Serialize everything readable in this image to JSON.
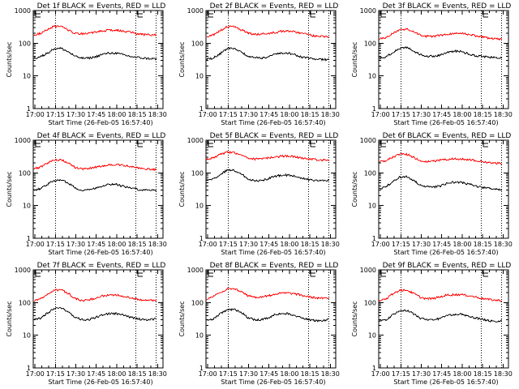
{
  "figure": {
    "ylabel": "Counts/sec",
    "xlabel": "Start Time (26-Feb-05 16:57:40)",
    "colors": {
      "events": "#000000",
      "lld": "#ff0000",
      "axes": "#000000"
    },
    "marker_label": "E"
  },
  "chart_data": [
    {
      "type": "line",
      "title": "Det 1f BLACK = Events, RED = LLD",
      "xlabel": "Start Time (26-Feb-05 16:57:40)",
      "ylabel": "Counts/sec",
      "yscale": "log",
      "ylim": [
        1,
        1000
      ],
      "y_ticks": [
        "1",
        "10",
        "100",
        "1000"
      ],
      "x_ticks": [
        "17:00",
        "17:15",
        "17:30",
        "17:45",
        "18:00",
        "18:15",
        "18:30"
      ],
      "xlim_minutes_after_1700": [
        -1.3,
        94
      ],
      "dotted_lines_minutes_after_1700": [
        15,
        74,
        89
      ],
      "markers": [
        {
          "label": "E",
          "minute": 0
        },
        {
          "label": "E",
          "minute": 75
        }
      ],
      "x": [
        0,
        5,
        10,
        15,
        20,
        25,
        30,
        35,
        40,
        45,
        50,
        55,
        60,
        65,
        70,
        75,
        80,
        85,
        90
      ],
      "series": [
        {
          "name": "LLD",
          "color": "#ff0000",
          "values": [
            180,
            200,
            260,
            330,
            320,
            260,
            200,
            195,
            200,
            215,
            240,
            250,
            250,
            240,
            220,
            200,
            185,
            180,
            180
          ]
        },
        {
          "name": "Events",
          "color": "#000000",
          "values": [
            35,
            38,
            50,
            68,
            70,
            55,
            40,
            35,
            35,
            38,
            45,
            50,
            50,
            45,
            40,
            37,
            35,
            34,
            33
          ]
        }
      ]
    },
    {
      "type": "line",
      "title": "Det 2f BLACK = Events, RED = LLD",
      "xlabel": "Start Time (26-Feb-05 16:57:40)",
      "ylabel": "Counts/sec",
      "yscale": "log",
      "ylim": [
        1,
        1000
      ],
      "y_ticks": [
        "1",
        "10",
        "100",
        "1000"
      ],
      "x_ticks": [
        "17:00",
        "17:15",
        "17:30",
        "17:45",
        "18:00",
        "18:15",
        "18:30"
      ],
      "xlim_minutes_after_1700": [
        -1.3,
        94
      ],
      "dotted_lines_minutes_after_1700": [
        15,
        74,
        89
      ],
      "markers": [
        {
          "label": "E",
          "minute": 0
        },
        {
          "label": "E",
          "minute": 75
        }
      ],
      "x": [
        0,
        5,
        10,
        15,
        20,
        25,
        30,
        35,
        40,
        45,
        50,
        55,
        60,
        65,
        70,
        75,
        80,
        85,
        90
      ],
      "series": [
        {
          "name": "LLD",
          "color": "#ff0000",
          "values": [
            160,
            180,
            240,
            320,
            320,
            260,
            210,
            185,
            190,
            200,
            215,
            230,
            235,
            225,
            200,
            180,
            165,
            160,
            155
          ]
        },
        {
          "name": "Events",
          "color": "#000000",
          "values": [
            32,
            35,
            48,
            68,
            70,
            55,
            40,
            36,
            35,
            38,
            45,
            50,
            50,
            44,
            38,
            35,
            33,
            32,
            31
          ]
        }
      ]
    },
    {
      "type": "line",
      "title": "Det 3f BLACK = Events, RED = LLD",
      "xlabel": "Start Time (26-Feb-05 16:57:40)",
      "ylabel": "Counts/sec",
      "yscale": "log",
      "ylim": [
        1,
        1000
      ],
      "y_ticks": [
        "1",
        "10",
        "100",
        "1000"
      ],
      "x_ticks": [
        "17:00",
        "17:15",
        "17:30",
        "17:45",
        "18:00",
        "18:15",
        "18:30"
      ],
      "xlim_minutes_after_1700": [
        -1.3,
        94
      ],
      "dotted_lines_minutes_after_1700": [
        15,
        74,
        89
      ],
      "markers": [
        {
          "label": "E",
          "minute": 0
        },
        {
          "label": "E",
          "minute": 75
        }
      ],
      "x": [
        0,
        5,
        10,
        15,
        20,
        25,
        30,
        35,
        40,
        45,
        50,
        55,
        60,
        65,
        70,
        75,
        80,
        85,
        90
      ],
      "series": [
        {
          "name": "LLD",
          "color": "#ff0000",
          "values": [
            135,
            150,
            200,
            260,
            270,
            220,
            180,
            160,
            165,
            175,
            190,
            200,
            200,
            190,
            170,
            160,
            145,
            135,
            130
          ]
        },
        {
          "name": "Events",
          "color": "#000000",
          "values": [
            35,
            38,
            52,
            70,
            75,
            58,
            45,
            40,
            40,
            44,
            52,
            58,
            55,
            48,
            42,
            40,
            38,
            36,
            35
          ]
        }
      ]
    },
    {
      "type": "line",
      "title": "Det 4f BLACK = Events, RED = LLD",
      "xlabel": "Start Time (26-Feb-05 16:57:40)",
      "ylabel": "Counts/sec",
      "yscale": "log",
      "ylim": [
        1,
        1000
      ],
      "y_ticks": [
        "1",
        "10",
        "100",
        "1000"
      ],
      "x_ticks": [
        "17:00",
        "17:15",
        "17:30",
        "17:45",
        "18:00",
        "18:15",
        "18:30"
      ],
      "xlim_minutes_after_1700": [
        -1.3,
        94
      ],
      "dotted_lines_minutes_after_1700": [
        15,
        74,
        89
      ],
      "markers": [
        {
          "label": "E",
          "minute": 0
        },
        {
          "label": "E",
          "minute": 75
        }
      ],
      "x": [
        0,
        5,
        10,
        15,
        20,
        25,
        30,
        35,
        40,
        45,
        50,
        55,
        60,
        65,
        70,
        75,
        80,
        85,
        90
      ],
      "series": [
        {
          "name": "LLD",
          "color": "#ff0000",
          "values": [
            135,
            150,
            200,
            250,
            250,
            200,
            150,
            130,
            135,
            150,
            165,
            175,
            180,
            170,
            160,
            145,
            135,
            130,
            125
          ]
        },
        {
          "name": "Events",
          "color": "#000000",
          "values": [
            30,
            33,
            45,
            58,
            60,
            50,
            35,
            30,
            30,
            34,
            40,
            45,
            45,
            40,
            35,
            32,
            30,
            30,
            30
          ]
        }
      ]
    },
    {
      "type": "line",
      "title": "Det 5f BLACK = Events, RED = LLD",
      "xlabel": "Start Time (26-Feb-05 16:57:40)",
      "ylabel": "Counts/sec",
      "yscale": "log",
      "ylim": [
        1,
        1000
      ],
      "y_ticks": [
        "1",
        "10",
        "100",
        "1000"
      ],
      "x_ticks": [
        "17:00",
        "17:15",
        "17:30",
        "17:45",
        "18:00",
        "18:15",
        "18:30"
      ],
      "xlim_minutes_after_1700": [
        -1.3,
        94
      ],
      "dotted_lines_minutes_after_1700": [
        15,
        74,
        89
      ],
      "markers": [
        {
          "label": "E",
          "minute": 0
        },
        {
          "label": "E",
          "minute": 75
        }
      ],
      "x": [
        0,
        5,
        10,
        15,
        20,
        25,
        30,
        35,
        40,
        45,
        50,
        55,
        60,
        65,
        70,
        75,
        80,
        85,
        90
      ],
      "series": [
        {
          "name": "LLD",
          "color": "#ff0000",
          "values": [
            260,
            290,
            360,
            430,
            420,
            350,
            280,
            265,
            270,
            285,
            310,
            325,
            325,
            310,
            285,
            265,
            255,
            250,
            250
          ]
        },
        {
          "name": "Events",
          "color": "#000000",
          "values": [
            60,
            65,
            90,
            120,
            120,
            95,
            65,
            58,
            58,
            65,
            80,
            85,
            85,
            78,
            70,
            62,
            58,
            58,
            60
          ]
        }
      ]
    },
    {
      "type": "line",
      "title": "Det 6f BLACK = Events, RED = LLD",
      "xlabel": "Start Time (26-Feb-05 16:57:40)",
      "ylabel": "Counts/sec",
      "yscale": "log",
      "ylim": [
        1,
        1000
      ],
      "y_ticks": [
        "1",
        "10",
        "100",
        "1000"
      ],
      "x_ticks": [
        "17:00",
        "17:15",
        "17:30",
        "17:45",
        "18:00",
        "18:15",
        "18:30"
      ],
      "xlim_minutes_after_1700": [
        -1.3,
        94
      ],
      "dotted_lines_minutes_after_1700": [
        15,
        74,
        89
      ],
      "markers": [
        {
          "label": "E",
          "minute": 0
        },
        {
          "label": "E",
          "minute": 75
        }
      ],
      "x": [
        0,
        5,
        10,
        15,
        20,
        25,
        30,
        35,
        40,
        45,
        50,
        55,
        60,
        65,
        70,
        75,
        80,
        85,
        90
      ],
      "series": [
        {
          "name": "LLD",
          "color": "#ff0000",
          "values": [
            215,
            240,
            310,
            370,
            370,
            300,
            240,
            225,
            230,
            245,
            260,
            270,
            265,
            255,
            240,
            220,
            205,
            200,
            195
          ]
        },
        {
          "name": "Events",
          "color": "#000000",
          "values": [
            33,
            37,
            55,
            75,
            78,
            58,
            42,
            37,
            37,
            40,
            48,
            52,
            52,
            46,
            40,
            36,
            34,
            32,
            31
          ]
        }
      ]
    },
    {
      "type": "line",
      "title": "Det 7f BLACK = Events, RED = LLD",
      "xlabel": "Start Time (26-Feb-05 16:57:40)",
      "ylabel": "Counts/sec",
      "yscale": "log",
      "ylim": [
        1,
        1000
      ],
      "y_ticks": [
        "1",
        "10",
        "100",
        "1000"
      ],
      "x_ticks": [
        "17:00",
        "17:15",
        "17:30",
        "17:45",
        "18:00",
        "18:15",
        "18:30"
      ],
      "xlim_minutes_after_1700": [
        -1.3,
        94
      ],
      "dotted_lines_minutes_after_1700": [
        15,
        74,
        89
      ],
      "markers": [
        {
          "label": "E",
          "minute": 0
        },
        {
          "label": "E",
          "minute": 75
        }
      ],
      "x": [
        0,
        5,
        10,
        15,
        20,
        25,
        30,
        35,
        40,
        45,
        50,
        55,
        60,
        65,
        70,
        75,
        80,
        85,
        90
      ],
      "series": [
        {
          "name": "LLD",
          "color": "#ff0000",
          "values": [
            115,
            130,
            180,
            240,
            245,
            190,
            135,
            115,
            120,
            135,
            160,
            170,
            170,
            160,
            145,
            130,
            120,
            118,
            120
          ]
        },
        {
          "name": "Events",
          "color": "#000000",
          "values": [
            30,
            33,
            48,
            65,
            68,
            52,
            35,
            30,
            30,
            34,
            42,
            46,
            46,
            42,
            36,
            33,
            30,
            30,
            32
          ]
        }
      ]
    },
    {
      "type": "line",
      "title": "Det 8f BLACK = Events, RED = LLD",
      "xlabel": "Start Time (26-Feb-05 16:57:40)",
      "ylabel": "Counts/sec",
      "yscale": "log",
      "ylim": [
        1,
        1000
      ],
      "y_ticks": [
        "1",
        "10",
        "100",
        "1000"
      ],
      "x_ticks": [
        "17:00",
        "17:15",
        "17:30",
        "17:45",
        "18:00",
        "18:15",
        "18:30"
      ],
      "xlim_minutes_after_1700": [
        -1.3,
        94
      ],
      "dotted_lines_minutes_after_1700": [
        15,
        74,
        89
      ],
      "markers": [
        {
          "label": "E",
          "minute": 0
        },
        {
          "label": "E",
          "minute": 75
        }
      ],
      "x": [
        0,
        5,
        10,
        15,
        20,
        25,
        30,
        35,
        40,
        45,
        50,
        55,
        60,
        65,
        70,
        75,
        80,
        85,
        90
      ],
      "series": [
        {
          "name": "LLD",
          "color": "#ff0000",
          "values": [
            130,
            150,
            200,
            260,
            265,
            220,
            165,
            145,
            150,
            160,
            180,
            195,
            195,
            185,
            165,
            150,
            140,
            135,
            135
          ]
        },
        {
          "name": "Events",
          "color": "#000000",
          "values": [
            28,
            32,
            45,
            60,
            62,
            52,
            35,
            30,
            30,
            33,
            42,
            46,
            46,
            40,
            33,
            30,
            28,
            28,
            30
          ]
        }
      ]
    },
    {
      "type": "line",
      "title": "Det 9f BLACK = Events, RED = LLD",
      "xlabel": "Start Time (26-Feb-05 16:57:40)",
      "ylabel": "Counts/sec",
      "yscale": "log",
      "ylim": [
        1,
        1000
      ],
      "y_ticks": [
        "1",
        "10",
        "100",
        "1000"
      ],
      "x_ticks": [
        "17:00",
        "17:15",
        "17:30",
        "17:45",
        "18:00",
        "18:15",
        "18:30"
      ],
      "xlim_minutes_after_1700": [
        -1.3,
        94
      ],
      "dotted_lines_minutes_after_1700": [
        15,
        74,
        89
      ],
      "markers": [
        {
          "label": "E",
          "minute": 0
        },
        {
          "label": "E",
          "minute": 75
        }
      ],
      "x": [
        0,
        5,
        10,
        15,
        20,
        25,
        30,
        35,
        40,
        45,
        50,
        55,
        60,
        65,
        70,
        75,
        80,
        85,
        90
      ],
      "series": [
        {
          "name": "LLD",
          "color": "#ff0000",
          "values": [
            110,
            130,
            185,
            235,
            240,
            190,
            145,
            130,
            135,
            150,
            170,
            175,
            175,
            165,
            150,
            135,
            125,
            118,
            115
          ]
        },
        {
          "name": "Events",
          "color": "#000000",
          "values": [
            26,
            30,
            42,
            55,
            58,
            46,
            33,
            30,
            30,
            33,
            40,
            44,
            44,
            38,
            34,
            31,
            28,
            27,
            27
          ]
        }
      ]
    }
  ]
}
